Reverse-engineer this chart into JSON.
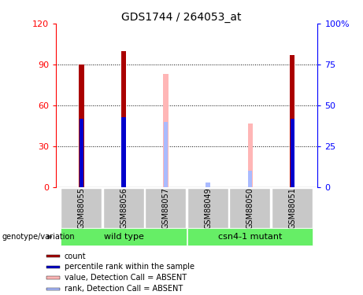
{
  "title": "GDS1744 / 264053_at",
  "samples": [
    "GSM88055",
    "GSM88056",
    "GSM88057",
    "GSM88049",
    "GSM88050",
    "GSM88051"
  ],
  "bars": [
    {
      "sample": "GSM88055",
      "absent": false,
      "value": 90,
      "rank": 42
    },
    {
      "sample": "GSM88056",
      "absent": false,
      "value": 100,
      "rank": 43
    },
    {
      "sample": "GSM88057",
      "absent": true,
      "value": 83,
      "rank": 40
    },
    {
      "sample": "GSM88049",
      "absent": true,
      "value": 0,
      "rank": 3
    },
    {
      "sample": "GSM88050",
      "absent": true,
      "value": 47,
      "rank": 10
    },
    {
      "sample": "GSM88051",
      "absent": false,
      "value": 97,
      "rank": 42
    }
  ],
  "ylim_left": [
    0,
    120
  ],
  "ylim_right": [
    0,
    100
  ],
  "left_ticks": [
    0,
    30,
    60,
    90,
    120
  ],
  "right_ticks": [
    0,
    25,
    50,
    75,
    100
  ],
  "bar_width": 0.12,
  "rank_marker_size": 5,
  "color_present_value": "#AA0000",
  "color_present_rank": "#0000CC",
  "color_absent_value": "#FFB6B6",
  "color_absent_rank": "#AABBFF",
  "sample_bg": "#C8C8C8",
  "group_bg": "#66EE66",
  "legend_items": [
    {
      "label": "count",
      "color": "#AA0000"
    },
    {
      "label": "percentile rank within the sample",
      "color": "#0000CC"
    },
    {
      "label": "value, Detection Call = ABSENT",
      "color": "#FFB6B6"
    },
    {
      "label": "rank, Detection Call = ABSENT",
      "color": "#AABBFF"
    }
  ],
  "groups": [
    {
      "name": "wild type",
      "start": 0,
      "end": 2
    },
    {
      "name": "csn4-1 mutant",
      "start": 3,
      "end": 5
    }
  ]
}
